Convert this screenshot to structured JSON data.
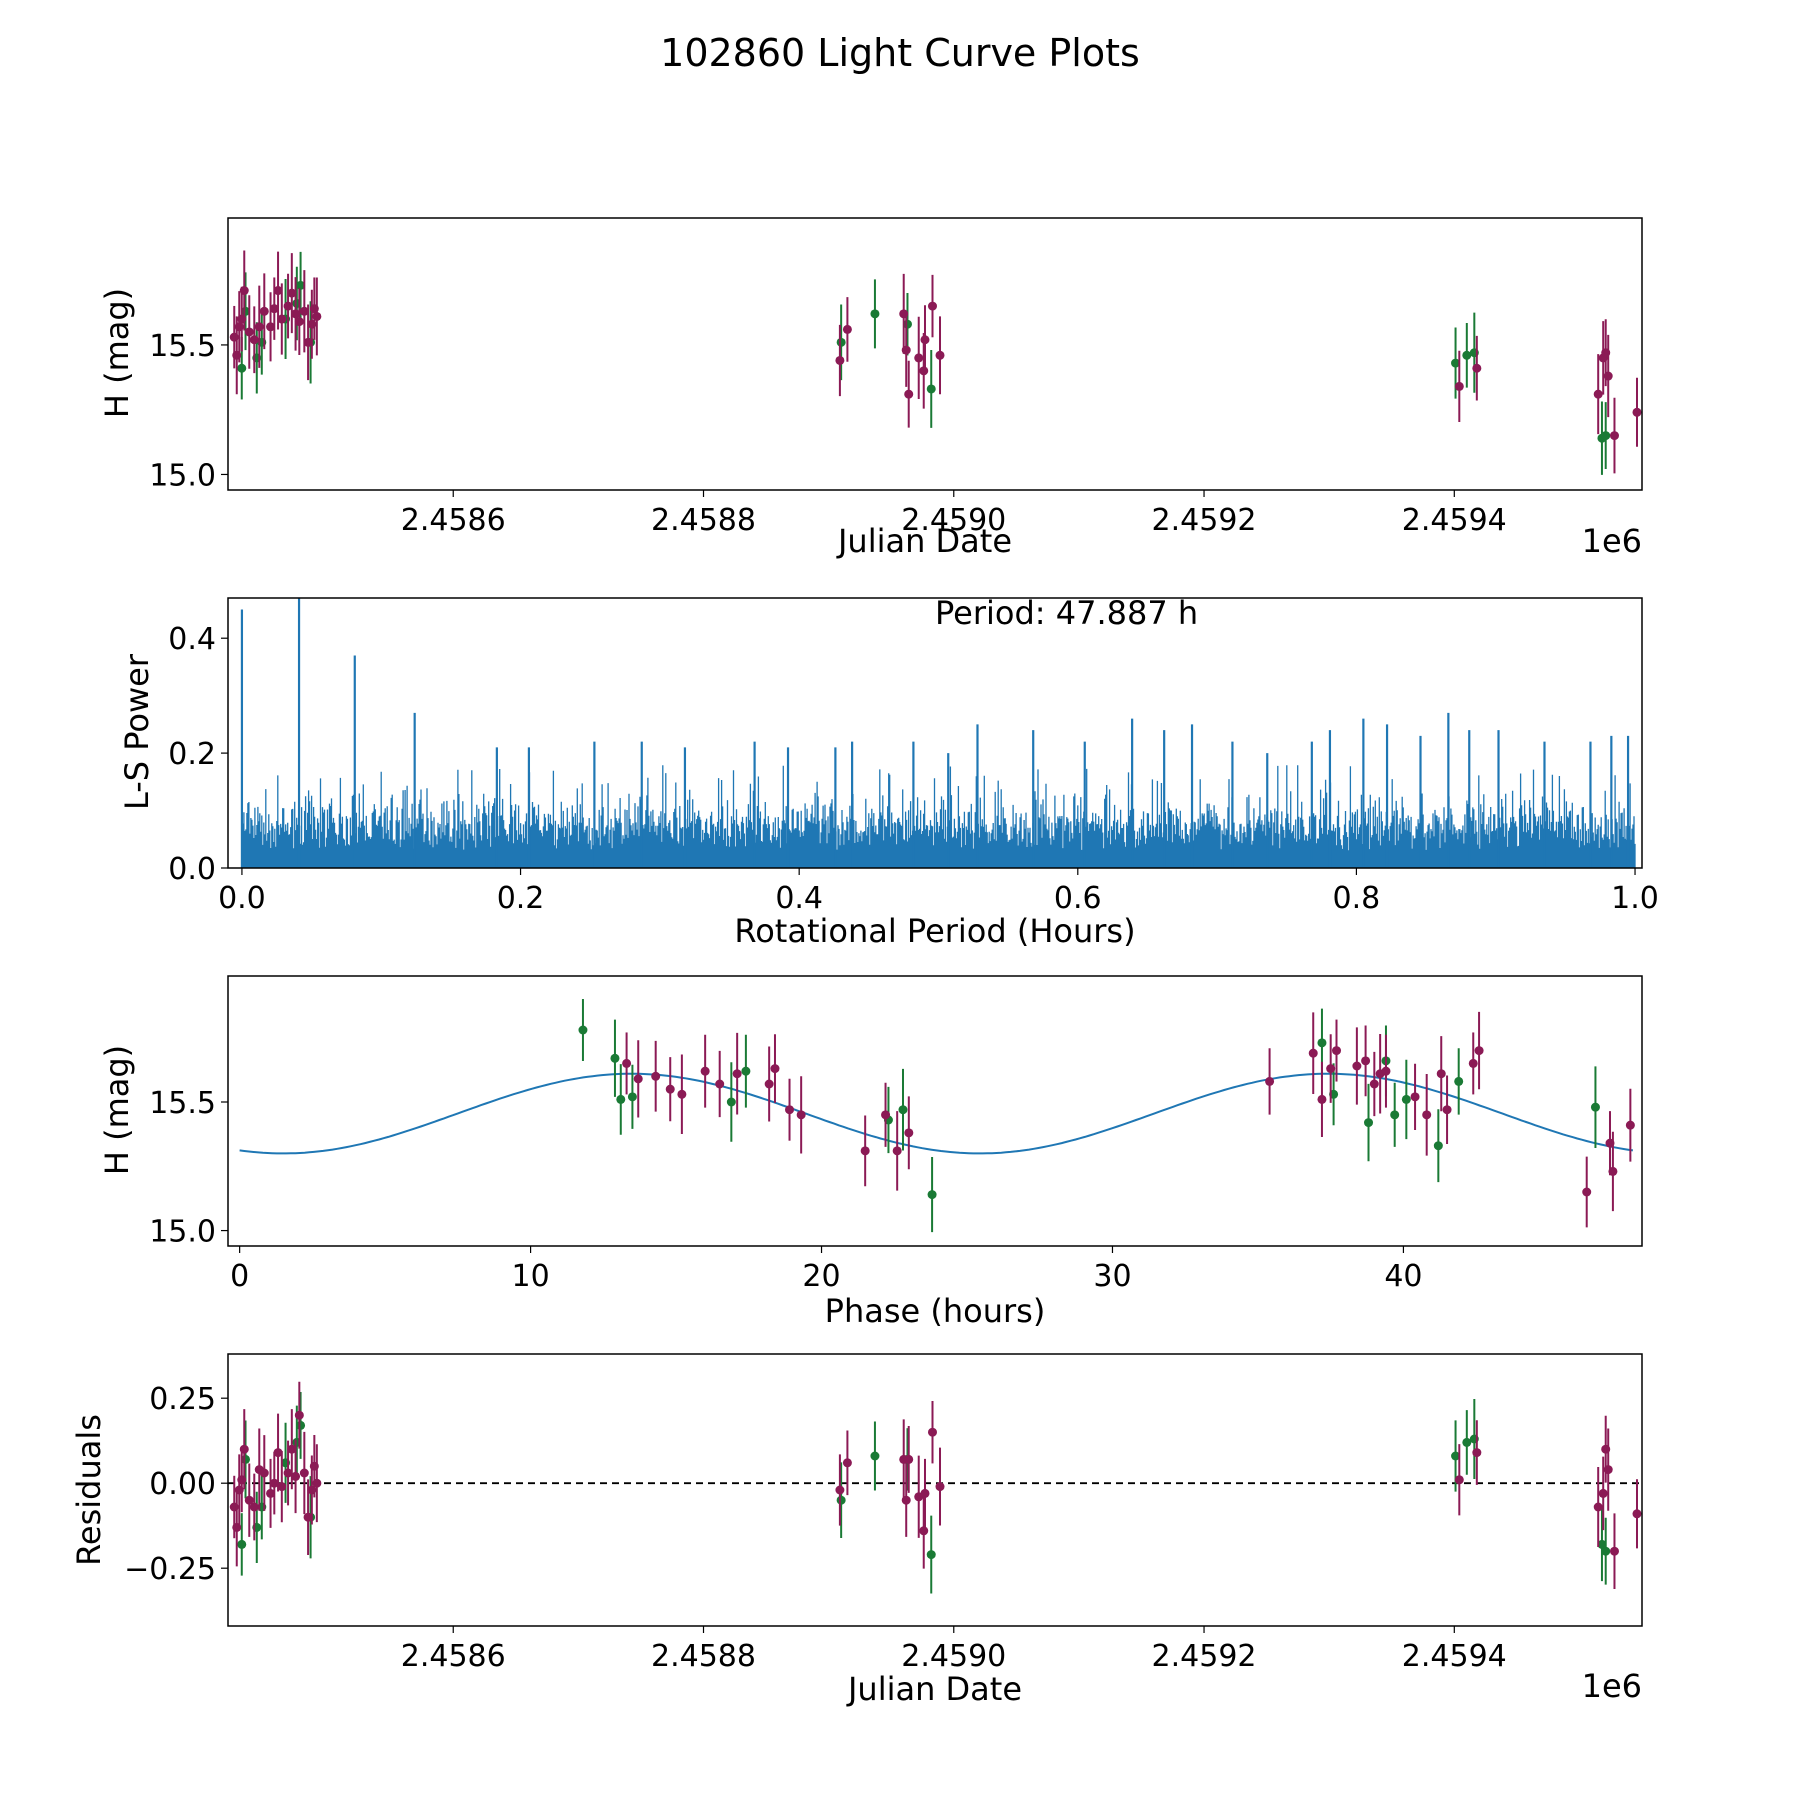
{
  "figure_title": "102860 Light Curve Plots",
  "colors": {
    "green": "#1a7a35",
    "purple": "#8b1a55",
    "curve": "#1f77b4",
    "dashed": "#000000"
  },
  "chart_data": [
    {
      "type": "scatter",
      "name": "h-vs-jd",
      "xlabel": "Julian Date",
      "ylabel": "H (mag)",
      "x_offset_label": "1e6",
      "xlim": [
        2.45842,
        2.45955
      ],
      "ylim": [
        14.94,
        15.99
      ],
      "xticks": [
        2.4586,
        2.4588,
        2.459,
        2.4592,
        2.4594
      ],
      "xtick_labels": [
        "2.4586",
        "2.4588",
        "2.4590",
        "2.4592",
        "2.4594"
      ],
      "yticks": [
        15.0,
        15.5
      ],
      "ytick_labels": [
        "15.0",
        "15.5"
      ],
      "series": [
        {
          "name": "green",
          "points": [
            [
              2.458431,
              15.41
            ],
            [
              2.458434,
              15.63
            ],
            [
              2.458443,
              15.45
            ],
            [
              2.458447,
              15.51
            ],
            [
              2.458466,
              15.6
            ],
            [
              2.458475,
              15.66
            ],
            [
              2.458478,
              15.73
            ],
            [
              2.458486,
              15.51
            ],
            [
              2.45891,
              15.51
            ],
            [
              2.458937,
              15.62
            ],
            [
              2.458963,
              15.58
            ],
            [
              2.458982,
              15.33
            ],
            [
              2.459401,
              15.43
            ],
            [
              2.45941,
              15.46
            ],
            [
              2.459416,
              15.47
            ],
            [
              2.459518,
              15.14
            ],
            [
              2.459521,
              15.15
            ]
          ]
        },
        {
          "name": "purple",
          "points": [
            [
              2.458425,
              15.53
            ],
            [
              2.458427,
              15.46
            ],
            [
              2.458429,
              15.57
            ],
            [
              2.458431,
              15.6
            ],
            [
              2.458433,
              15.71
            ],
            [
              2.458437,
              15.55
            ],
            [
              2.458441,
              15.52
            ],
            [
              2.458445,
              15.57
            ],
            [
              2.458449,
              15.63
            ],
            [
              2.458454,
              15.57
            ],
            [
              2.458457,
              15.64
            ],
            [
              2.45846,
              15.71
            ],
            [
              2.458463,
              15.6
            ],
            [
              2.458468,
              15.65
            ],
            [
              2.458471,
              15.7
            ],
            [
              2.458474,
              15.62
            ],
            [
              2.458477,
              15.59
            ],
            [
              2.458481,
              15.63
            ],
            [
              2.458484,
              15.51
            ],
            [
              2.458487,
              15.58
            ],
            [
              2.458489,
              15.64
            ],
            [
              2.458491,
              15.61
            ],
            [
              2.458909,
              15.44
            ],
            [
              2.458915,
              15.56
            ],
            [
              2.45896,
              15.62
            ],
            [
              2.458962,
              15.48
            ],
            [
              2.458964,
              15.31
            ],
            [
              2.458972,
              15.45
            ],
            [
              2.458976,
              15.4
            ],
            [
              2.458977,
              15.52
            ],
            [
              2.458983,
              15.65
            ],
            [
              2.458989,
              15.46
            ],
            [
              2.459404,
              15.34
            ],
            [
              2.459418,
              15.41
            ],
            [
              2.459515,
              15.31
            ],
            [
              2.459519,
              15.45
            ],
            [
              2.459521,
              15.47
            ],
            [
              2.459523,
              15.38
            ],
            [
              2.459528,
              15.15
            ],
            [
              2.459546,
              15.24
            ]
          ]
        }
      ]
    },
    {
      "type": "line",
      "name": "periodogram",
      "xlabel": "Rotational Period (Hours)",
      "ylabel": "L-S Power",
      "annotation": "Period: 47.887 h",
      "xlim": [
        -0.01,
        1.005
      ],
      "ylim": [
        0,
        0.47
      ],
      "xticks": [
        0,
        0.2,
        0.4,
        0.6,
        0.8,
        1.0
      ],
      "xtick_labels": [
        "0.0",
        "0.2",
        "0.4",
        "0.6",
        "0.8",
        "1.0"
      ],
      "yticks": [
        0,
        0.2,
        0.4
      ],
      "ytick_labels": [
        "0.0",
        "0.2",
        "0.4"
      ],
      "peaks": [
        [
          0.0,
          0.45
        ],
        [
          0.041,
          0.47
        ],
        [
          0.081,
          0.37
        ],
        [
          0.124,
          0.27
        ],
        [
          0.183,
          0.21
        ],
        [
          0.206,
          0.21
        ],
        [
          0.253,
          0.22
        ],
        [
          0.287,
          0.22
        ],
        [
          0.318,
          0.21
        ],
        [
          0.368,
          0.22
        ],
        [
          0.392,
          0.21
        ],
        [
          0.426,
          0.21
        ],
        [
          0.438,
          0.22
        ],
        [
          0.482,
          0.22
        ],
        [
          0.507,
          0.2
        ],
        [
          0.528,
          0.25
        ],
        [
          0.568,
          0.24
        ],
        [
          0.605,
          0.22
        ],
        [
          0.639,
          0.26
        ],
        [
          0.662,
          0.24
        ],
        [
          0.682,
          0.25
        ],
        [
          0.711,
          0.22
        ],
        [
          0.736,
          0.2
        ],
        [
          0.768,
          0.22
        ],
        [
          0.781,
          0.24
        ],
        [
          0.805,
          0.26
        ],
        [
          0.822,
          0.25
        ],
        [
          0.846,
          0.23
        ],
        [
          0.866,
          0.27
        ],
        [
          0.881,
          0.24
        ],
        [
          0.902,
          0.24
        ],
        [
          0.935,
          0.22
        ],
        [
          0.968,
          0.22
        ],
        [
          0.983,
          0.23
        ],
        [
          0.995,
          0.23
        ]
      ]
    },
    {
      "type": "scatter",
      "name": "phase-folded",
      "xlabel": "Phase (hours)",
      "ylabel": "H (mag)",
      "xlim": [
        -0.4,
        48.2
      ],
      "ylim": [
        14.94,
        15.99
      ],
      "xticks": [
        0,
        10,
        20,
        30,
        40
      ],
      "xtick_labels": [
        "0",
        "10",
        "20",
        "30",
        "40"
      ],
      "yticks": [
        15.0,
        15.5
      ],
      "ytick_labels": [
        "15.0",
        "15.5"
      ],
      "model": {
        "period_hours": 47.887,
        "mean": 15.455,
        "amplitude": 0.155,
        "phase_of_min": 1.5
      },
      "series": [
        {
          "name": "green",
          "points": [
            [
              11.8,
              15.78
            ],
            [
              12.9,
              15.67
            ],
            [
              13.1,
              15.51
            ],
            [
              13.5,
              15.52
            ],
            [
              16.9,
              15.5
            ],
            [
              17.4,
              15.62
            ],
            [
              22.3,
              15.43
            ],
            [
              22.8,
              15.47
            ],
            [
              23.8,
              15.14
            ],
            [
              37.2,
              15.73
            ],
            [
              37.6,
              15.53
            ],
            [
              38.8,
              15.42
            ],
            [
              39.4,
              15.66
            ],
            [
              39.7,
              15.45
            ],
            [
              40.1,
              15.51
            ],
            [
              41.2,
              15.33
            ],
            [
              41.9,
              15.58
            ],
            [
              46.6,
              15.48
            ]
          ]
        },
        {
          "name": "purple",
          "points": [
            [
              13.3,
              15.65
            ],
            [
              13.7,
              15.59
            ],
            [
              14.3,
              15.6
            ],
            [
              14.8,
              15.55
            ],
            [
              15.2,
              15.53
            ],
            [
              16.0,
              15.62
            ],
            [
              16.5,
              15.57
            ],
            [
              17.1,
              15.61
            ],
            [
              18.2,
              15.57
            ],
            [
              18.4,
              15.63
            ],
            [
              18.9,
              15.47
            ],
            [
              19.3,
              15.45
            ],
            [
              21.5,
              15.31
            ],
            [
              22.2,
              15.45
            ],
            [
              22.6,
              15.31
            ],
            [
              23.0,
              15.38
            ],
            [
              35.4,
              15.58
            ],
            [
              36.9,
              15.69
            ],
            [
              37.2,
              15.51
            ],
            [
              37.5,
              15.63
            ],
            [
              37.7,
              15.7
            ],
            [
              38.4,
              15.64
            ],
            [
              38.7,
              15.66
            ],
            [
              39.0,
              15.57
            ],
            [
              39.2,
              15.61
            ],
            [
              39.4,
              15.62
            ],
            [
              40.4,
              15.52
            ],
            [
              40.8,
              15.45
            ],
            [
              41.3,
              15.61
            ],
            [
              41.5,
              15.47
            ],
            [
              42.4,
              15.65
            ],
            [
              42.6,
              15.7
            ],
            [
              46.3,
              15.15
            ],
            [
              47.1,
              15.34
            ],
            [
              47.2,
              15.23
            ],
            [
              47.8,
              15.41
            ]
          ]
        }
      ]
    },
    {
      "type": "scatter",
      "name": "residuals",
      "xlabel": "Julian Date",
      "ylabel": "Residuals",
      "x_offset_label": "1e6",
      "xlim": [
        2.45842,
        2.45955
      ],
      "ylim": [
        -0.42,
        0.38
      ],
      "xticks": [
        2.4586,
        2.4588,
        2.459,
        2.4592,
        2.4594
      ],
      "xtick_labels": [
        "2.4586",
        "2.4588",
        "2.4590",
        "2.4592",
        "2.4594"
      ],
      "yticks": [
        -0.25,
        0.0,
        0.25
      ],
      "ytick_labels": [
        "−0.25",
        "0.00",
        "0.25"
      ],
      "series": [
        {
          "name": "green",
          "points": [
            [
              2.458431,
              -0.18
            ],
            [
              2.458434,
              0.07
            ],
            [
              2.458443,
              -0.13
            ],
            [
              2.458447,
              -0.07
            ],
            [
              2.458466,
              0.06
            ],
            [
              2.458475,
              0.12
            ],
            [
              2.458478,
              0.17
            ],
            [
              2.458486,
              -0.1
            ],
            [
              2.45891,
              -0.05
            ],
            [
              2.458937,
              0.08
            ],
            [
              2.458963,
              0.07
            ],
            [
              2.458982,
              -0.21
            ],
            [
              2.459401,
              0.08
            ],
            [
              2.45941,
              0.12
            ],
            [
              2.459416,
              0.13
            ],
            [
              2.459518,
              -0.18
            ],
            [
              2.459521,
              -0.2
            ]
          ]
        },
        {
          "name": "purple",
          "points": [
            [
              2.458425,
              -0.07
            ],
            [
              2.458427,
              -0.13
            ],
            [
              2.458429,
              -0.02
            ],
            [
              2.458431,
              0.01
            ],
            [
              2.458433,
              0.1
            ],
            [
              2.458437,
              -0.05
            ],
            [
              2.458441,
              -0.07
            ],
            [
              2.458445,
              0.04
            ],
            [
              2.458449,
              0.03
            ],
            [
              2.458454,
              -0.03
            ],
            [
              2.458457,
              0.0
            ],
            [
              2.45846,
              0.09
            ],
            [
              2.458463,
              -0.01
            ],
            [
              2.458468,
              0.03
            ],
            [
              2.458471,
              0.1
            ],
            [
              2.458474,
              0.02
            ],
            [
              2.458477,
              0.2
            ],
            [
              2.458481,
              0.03
            ],
            [
              2.458484,
              -0.1
            ],
            [
              2.458487,
              -0.02
            ],
            [
              2.458489,
              0.05
            ],
            [
              2.458491,
              0.0
            ],
            [
              2.458909,
              -0.02
            ],
            [
              2.458915,
              0.06
            ],
            [
              2.45896,
              0.07
            ],
            [
              2.458962,
              -0.05
            ],
            [
              2.458964,
              0.07
            ],
            [
              2.458972,
              -0.04
            ],
            [
              2.458976,
              -0.14
            ],
            [
              2.458977,
              -0.03
            ],
            [
              2.458983,
              0.15
            ],
            [
              2.458989,
              -0.01
            ],
            [
              2.459404,
              0.01
            ],
            [
              2.459418,
              0.09
            ],
            [
              2.459515,
              -0.07
            ],
            [
              2.459519,
              -0.03
            ],
            [
              2.459521,
              0.1
            ],
            [
              2.459523,
              0.04
            ],
            [
              2.459528,
              -0.2
            ],
            [
              2.459546,
              -0.09
            ]
          ]
        }
      ]
    }
  ]
}
